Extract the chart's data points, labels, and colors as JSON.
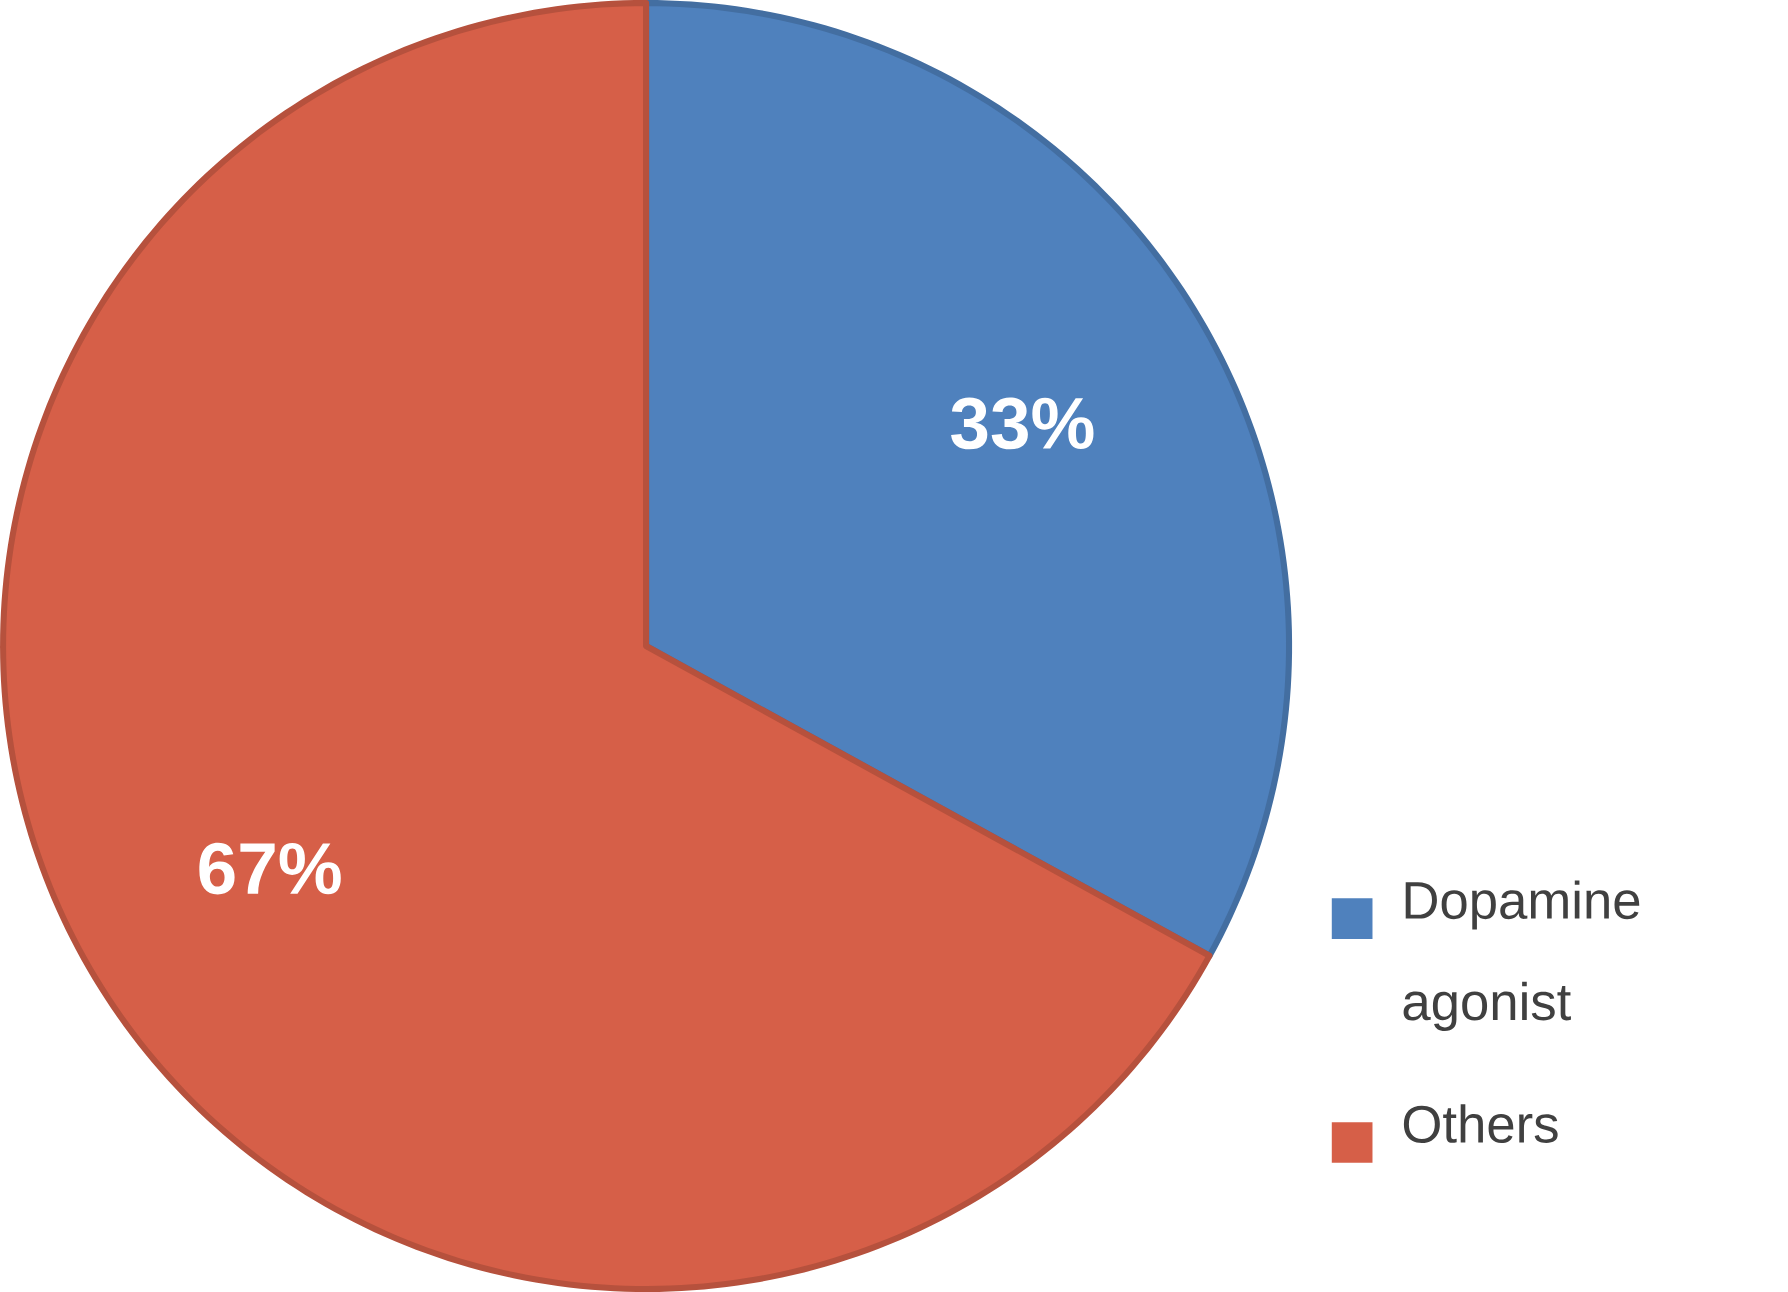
{
  "chart_data": {
    "type": "pie",
    "categories": [
      "Dopamine agonist",
      "Others"
    ],
    "values": [
      33,
      67
    ],
    "colors": [
      "#4f81bd",
      "#d65f48"
    ],
    "value_labels": [
      "33%",
      "67%"
    ],
    "legend": "right"
  }
}
